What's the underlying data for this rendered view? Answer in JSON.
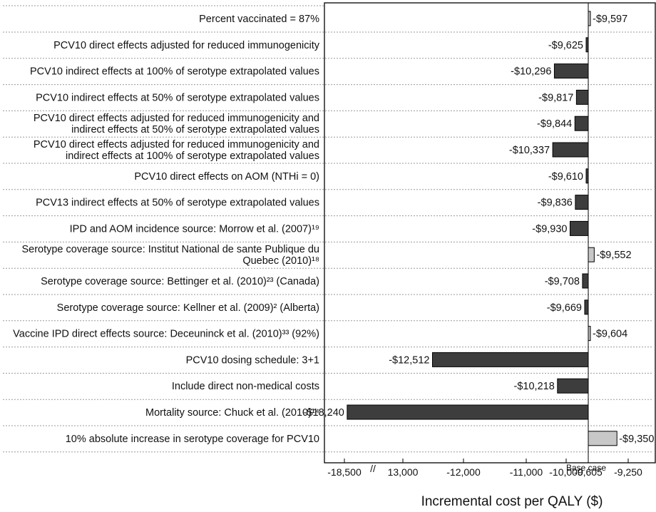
{
  "chart_data": {
    "type": "bar",
    "orientation": "horizontal",
    "base_value": -9605,
    "xlabel": "Incremental cost per QALY ($)",
    "x_ticks": [
      "-18,500",
      "13,000",
      "-12,000",
      "-11,000",
      "-10,000",
      "-9,605",
      "-9,250"
    ],
    "base_case_label": "Base case",
    "axis_break": "//",
    "categories": [
      [
        "Percent vaccinated = 87%"
      ],
      [
        "PCV10 direct effects adjusted for reduced immunogenicity"
      ],
      [
        "PCV10 indirect effects at 100% of serotype extrapolated values"
      ],
      [
        "PCV10 indirect effects at 50% of serotype extrapolated values"
      ],
      [
        "PCV10 direct effects adjusted for reduced immunogenicity and",
        "indirect effects at 50% of serotype extrapolated values"
      ],
      [
        "PCV10 direct effects adjusted for reduced immunogenicity and",
        "indirect effects at 100% of serotype extrapolated values"
      ],
      [
        "PCV10 direct effects on AOM (NTHi = 0)"
      ],
      [
        "PCV13 indirect effects at 50% of serotype extrapolated values"
      ],
      [
        "IPD and AOM incidence source: Morrow et al. (2007)¹⁹"
      ],
      [
        "Serotype coverage source: Institut National de sante Publique du",
        "Quebec (2010)¹⁸"
      ],
      [
        "Serotype coverage source: Bettinger et al. (2010)²³ (Canada)"
      ],
      [
        "Serotype coverage source: Kellner et al. (2009)² (Alberta)"
      ],
      [
        "Vaccine IPD direct effects source: Deceuninck et al. (2010)³³ (92%)"
      ],
      [
        "PCV10 dosing schedule: 3+1"
      ],
      [
        "Include direct non-medical costs"
      ],
      [
        "Mortality source: Chuck et al. (2010)¹⁴"
      ],
      [
        "10% absolute increase in serotype coverage for PCV10"
      ]
    ],
    "values": [
      -9597,
      -9625,
      -10296,
      -9817,
      -9844,
      -10337,
      -9610,
      -9836,
      -9930,
      -9552,
      -9708,
      -9669,
      -9604,
      -12512,
      -10218,
      -18240,
      -9350
    ],
    "value_labels": [
      "-$9,597",
      "-$9,625",
      "-$10,296",
      "-$9,817",
      "-$9,844",
      "-$10,337",
      "-$9,610",
      "-$9,836",
      "-$9,930",
      "-$9,552",
      "-$9,708",
      "-$9,669",
      "-$9,604",
      "-$12,512",
      "-$10,218",
      "-$18,240",
      "-$9,350"
    ],
    "colors": {
      "decrease": "#3d3d3d",
      "increase": "#c8c8c8",
      "border": "#000000",
      "divider": "#9a9a9a"
    }
  }
}
